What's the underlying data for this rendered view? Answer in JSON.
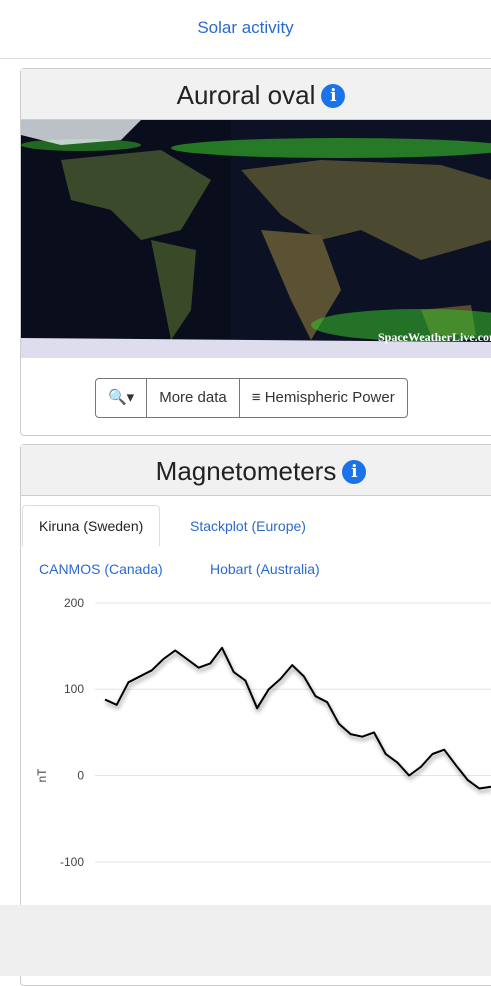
{
  "tab": {
    "label": "Solar activity"
  },
  "aurora": {
    "title": "Auroral oval",
    "watermark": "SpaceWeatherLive.com",
    "buttons": [
      "More data",
      "Hemispheric Power"
    ]
  },
  "magnetometers": {
    "title": "Magnetometers",
    "tabs": [
      "Kiruna (Sweden)",
      "Stackplot (Europe)",
      "CANMOS (Canada)",
      "Hobart (Australia)"
    ]
  },
  "chart_data": {
    "type": "line",
    "ylabel": "nT",
    "color": "#000000",
    "grid": true,
    "ylim": [
      -150,
      215
    ],
    "yticks": [
      -100,
      0,
      100,
      200
    ],
    "values": [
      88,
      82,
      108,
      115,
      122,
      135,
      145,
      135,
      125,
      130,
      148,
      120,
      110,
      78,
      100,
      112,
      128,
      115,
      92,
      85,
      60,
      48,
      45,
      50,
      25,
      15,
      0,
      10,
      25,
      30,
      12,
      -5,
      -15,
      -13
    ]
  }
}
